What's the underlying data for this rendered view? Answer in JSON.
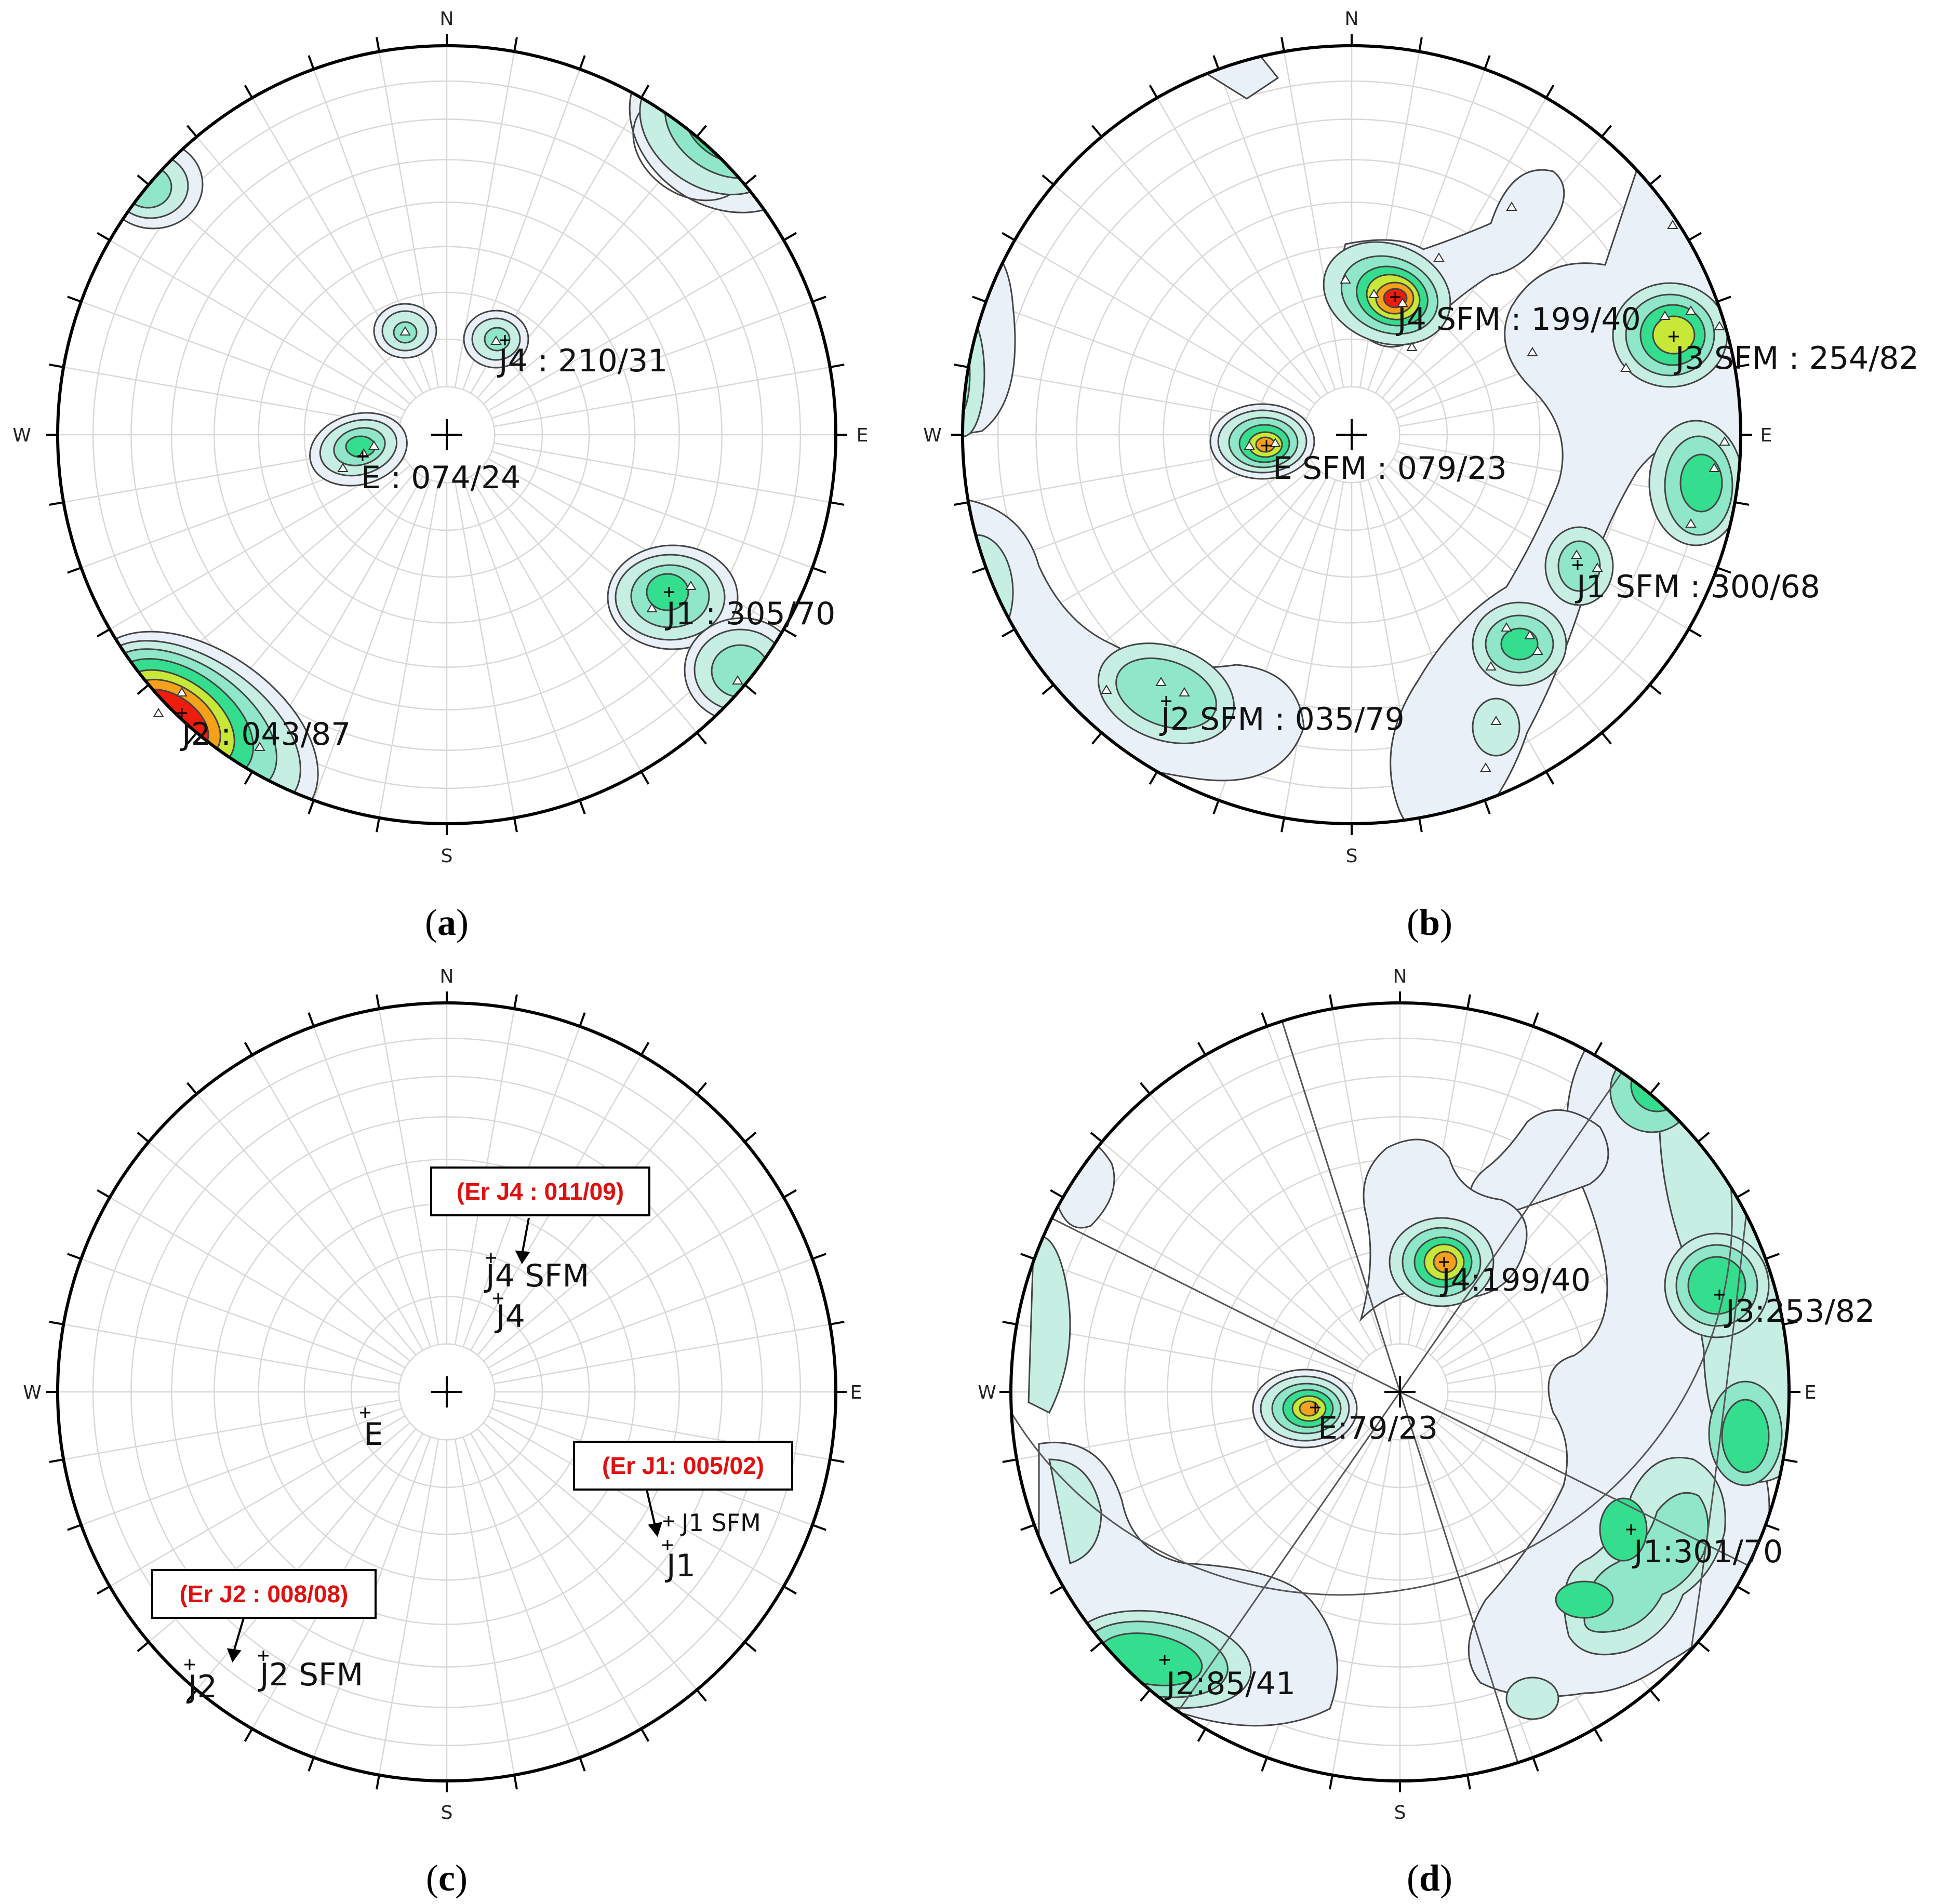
{
  "compass": {
    "north": "N",
    "south": "S",
    "east": "E",
    "west": "W"
  },
  "colors": {
    "contour_1": "#eaf0f7",
    "contour_2": "#c6eee3",
    "contour_3": "#8fe6c8",
    "contour_4": "#35de8e",
    "contour_5": "#c8e838",
    "contour_6": "#f5a11a",
    "contour_7": "#ee1c0c",
    "error_text": "#e01010",
    "net_lines": "#d8d8d8"
  },
  "panels": [
    {
      "id": "a",
      "caption_open": "(",
      "caption_letter": "a",
      "caption_close": ")",
      "labels": [
        {
          "text": "J4 : 210/31"
        },
        {
          "text": "E : 074/24"
        },
        {
          "text": "J1 : 305/70"
        },
        {
          "text": "J2 : 043/87"
        }
      ]
    },
    {
      "id": "b",
      "caption_open": "(",
      "caption_letter": "b",
      "caption_close": ")",
      "labels": [
        {
          "text": "J4 SFM : 199/40"
        },
        {
          "text": "J3 SFM : 254/82"
        },
        {
          "text": "E SFM : 079/23"
        },
        {
          "text": "J1 SFM : 300/68"
        },
        {
          "text": "J2 SFM : 035/79"
        }
      ]
    },
    {
      "id": "c",
      "caption_open": "(",
      "caption_letter": "c",
      "caption_close": ")",
      "labels": [
        {
          "text": "J4 SFM"
        },
        {
          "text": "J4"
        },
        {
          "text": "E"
        },
        {
          "text": "J1 SFM"
        },
        {
          "text": "J1"
        },
        {
          "text": "J2"
        },
        {
          "text": "J2 SFM"
        }
      ],
      "errors": [
        {
          "text": "(Er J4 : 011/09)"
        },
        {
          "text": "(Er J1: 005/02)"
        },
        {
          "text": "(Er J2 : 008/08)"
        }
      ]
    },
    {
      "id": "d",
      "caption_open": "(",
      "caption_letter": "d",
      "caption_close": ")",
      "labels": [
        {
          "text": "J4:199/40"
        },
        {
          "text": "J3:253/82"
        },
        {
          "text": "E:79/23"
        },
        {
          "text": "J1:301/70"
        },
        {
          "text": "J2:85/41"
        }
      ]
    }
  ]
}
